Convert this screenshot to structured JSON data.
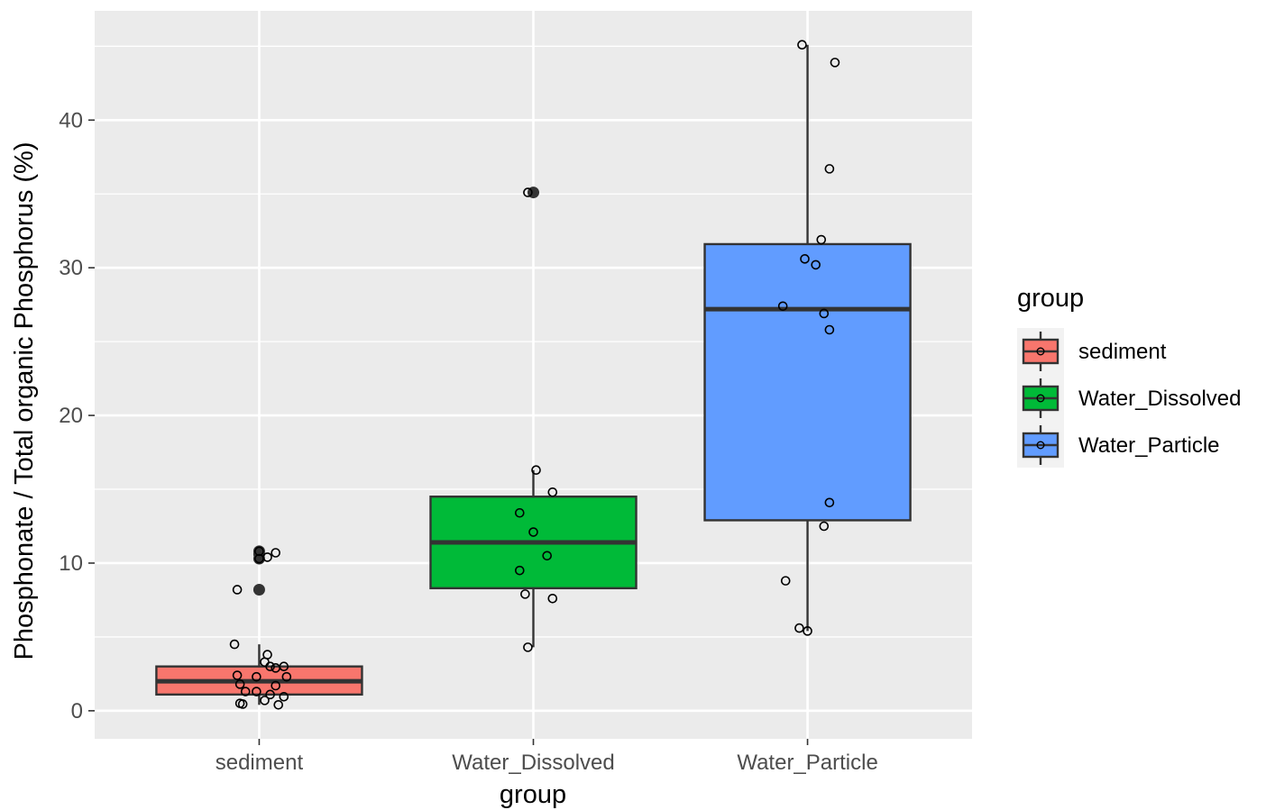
{
  "chart_data": {
    "type": "box",
    "xlabel": "group",
    "ylabel": "Phosphonate / Total organic Phosphorus (%)",
    "ylim": [
      -1.9,
      47.4
    ],
    "yticks": [
      0,
      10,
      20,
      30,
      40
    ],
    "ytick_labels": [
      "0",
      "10",
      "20",
      "30",
      "40"
    ],
    "grid": true,
    "categories": [
      "sediment",
      "Water_Dissolved",
      "Water_Particle"
    ],
    "legend": {
      "title": "group",
      "position": "right",
      "entries": [
        "sediment",
        "Water_Dissolved",
        "Water_Particle"
      ]
    },
    "colors": {
      "sediment": "#f8766d",
      "Water_Dissolved": "#00ba38",
      "Water_Particle": "#619cff",
      "panel": "#ebebeb",
      "grid": "#ffffff",
      "outline": "#333333"
    },
    "series": [
      {
        "name": "sediment",
        "box": {
          "q1": 1.1,
          "median": 2.0,
          "q3": 3.0,
          "whisker_low": 0.4,
          "whisker_high": 4.5
        },
        "outliers": [
          8.2,
          10.3,
          10.6,
          10.8
        ],
        "points": [
          [
            -0.08,
            8.2
          ],
          [
            -0.09,
            4.5
          ],
          [
            0.03,
            3.8
          ],
          [
            0.02,
            3.3
          ],
          [
            0.04,
            3.0
          ],
          [
            0.06,
            2.9
          ],
          [
            0.09,
            3.0
          ],
          [
            -0.08,
            2.4
          ],
          [
            -0.01,
            2.3
          ],
          [
            0.1,
            2.3
          ],
          [
            -0.07,
            1.8
          ],
          [
            0.06,
            1.7
          ],
          [
            -0.05,
            1.3
          ],
          [
            -0.01,
            1.3
          ],
          [
            0.04,
            1.1
          ],
          [
            0.09,
            0.95
          ],
          [
            0.02,
            0.7
          ],
          [
            -0.07,
            0.5
          ],
          [
            -0.06,
            0.45
          ],
          [
            0.07,
            0.4
          ],
          [
            0.0,
            10.8
          ],
          [
            0.0,
            10.3
          ],
          [
            0.03,
            10.4
          ],
          [
            0.06,
            10.7
          ]
        ]
      },
      {
        "name": "Water_Dissolved",
        "box": {
          "q1": 8.3,
          "median": 11.4,
          "q3": 14.5,
          "whisker_low": 4.3,
          "whisker_high": 16.3
        },
        "outliers": [
          35.1
        ],
        "points": [
          [
            -0.02,
            35.1
          ],
          [
            0.01,
            16.3
          ],
          [
            0.07,
            14.8
          ],
          [
            -0.05,
            13.4
          ],
          [
            0.0,
            12.1
          ],
          [
            0.05,
            10.5
          ],
          [
            -0.05,
            9.5
          ],
          [
            -0.03,
            7.9
          ],
          [
            0.07,
            7.6
          ],
          [
            -0.02,
            4.3
          ]
        ]
      },
      {
        "name": "Water_Particle",
        "box": {
          "q1": 12.9,
          "median": 27.2,
          "q3": 31.6,
          "whisker_low": 5.4,
          "whisker_high": 45.1
        },
        "outliers": [],
        "points": [
          [
            -0.02,
            45.1
          ],
          [
            0.1,
            43.9
          ],
          [
            0.08,
            36.7
          ],
          [
            0.05,
            31.9
          ],
          [
            -0.01,
            30.6
          ],
          [
            0.03,
            30.2
          ],
          [
            -0.09,
            27.4
          ],
          [
            0.06,
            26.9
          ],
          [
            0.08,
            25.8
          ],
          [
            0.08,
            14.1
          ],
          [
            0.06,
            12.5
          ],
          [
            -0.08,
            8.8
          ],
          [
            -0.03,
            5.6
          ],
          [
            0.0,
            5.4
          ]
        ]
      }
    ]
  }
}
